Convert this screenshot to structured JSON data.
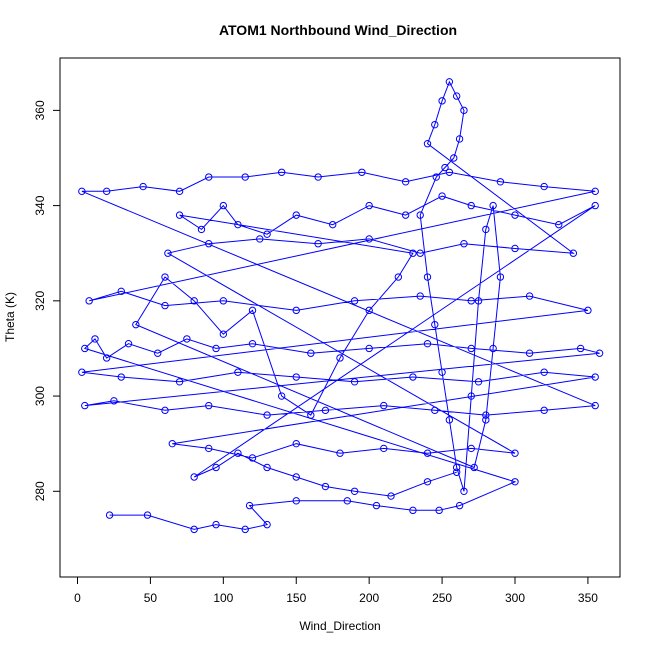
{
  "chart_data": {
    "type": "scatter",
    "title": "ATOM1 Northbound Wind_Direction",
    "xlabel": "Wind_Direction",
    "ylabel": "Theta (K)",
    "xlim": [
      -12,
      372
    ],
    "ylim": [
      262,
      371
    ],
    "xticks": [
      "0",
      "50",
      "100",
      "150",
      "200",
      "250",
      "300",
      "350"
    ],
    "yticks": [
      "280",
      "300",
      "320",
      "340",
      "360"
    ],
    "marker": "open-circle",
    "connected": true,
    "grid": false,
    "legend": "none",
    "color": "#0000ff",
    "series": [
      {
        "values": [
          [
            22,
            275
          ],
          [
            48,
            275
          ],
          [
            80,
            272
          ],
          [
            95,
            273
          ],
          [
            115,
            272
          ],
          [
            130,
            273
          ],
          [
            118,
            277
          ],
          [
            150,
            278
          ],
          [
            185,
            278
          ],
          [
            205,
            277
          ],
          [
            230,
            276
          ],
          [
            248,
            276
          ],
          [
            262,
            277
          ],
          [
            300,
            282
          ],
          [
            5,
            310
          ],
          [
            12,
            312
          ],
          [
            20,
            308
          ],
          [
            35,
            311
          ],
          [
            55,
            309
          ],
          [
            75,
            312
          ],
          [
            95,
            310
          ],
          [
            120,
            311
          ],
          [
            160,
            309
          ],
          [
            200,
            310
          ],
          [
            240,
            311
          ],
          [
            270,
            310
          ],
          [
            310,
            309
          ],
          [
            345,
            310
          ],
          [
            358,
            309
          ],
          [
            5,
            298
          ],
          [
            25,
            299
          ],
          [
            60,
            297
          ],
          [
            90,
            298
          ],
          [
            130,
            296
          ],
          [
            170,
            297
          ],
          [
            210,
            298
          ],
          [
            245,
            297
          ],
          [
            280,
            296
          ],
          [
            320,
            297
          ],
          [
            355,
            298
          ],
          [
            3,
            343
          ],
          [
            20,
            343
          ],
          [
            45,
            344
          ],
          [
            70,
            343
          ],
          [
            90,
            346
          ],
          [
            115,
            346
          ],
          [
            140,
            347
          ],
          [
            165,
            346
          ],
          [
            195,
            347
          ],
          [
            225,
            345
          ],
          [
            255,
            347
          ],
          [
            290,
            345
          ],
          [
            320,
            344
          ],
          [
            355,
            343
          ],
          [
            8,
            320
          ],
          [
            30,
            322
          ],
          [
            60,
            319
          ],
          [
            100,
            320
          ],
          [
            150,
            318
          ],
          [
            190,
            320
          ],
          [
            235,
            321
          ],
          [
            270,
            320
          ],
          [
            310,
            321
          ],
          [
            350,
            318
          ],
          [
            3,
            305
          ],
          [
            30,
            304
          ],
          [
            70,
            303
          ],
          [
            110,
            305
          ],
          [
            150,
            304
          ],
          [
            190,
            303
          ],
          [
            230,
            304
          ],
          [
            275,
            303
          ],
          [
            320,
            305
          ],
          [
            355,
            304
          ],
          [
            65,
            290
          ],
          [
            90,
            289
          ],
          [
            120,
            287
          ],
          [
            150,
            290
          ],
          [
            180,
            288
          ],
          [
            210,
            289
          ],
          [
            240,
            288
          ],
          [
            270,
            289
          ],
          [
            300,
            288
          ],
          [
            62,
            330
          ],
          [
            90,
            332
          ],
          [
            125,
            333
          ],
          [
            165,
            332
          ],
          [
            200,
            333
          ],
          [
            235,
            330
          ],
          [
            265,
            332
          ],
          [
            300,
            331
          ],
          [
            340,
            330
          ],
          [
            240,
            353
          ],
          [
            245,
            357
          ],
          [
            250,
            362
          ],
          [
            255,
            366
          ],
          [
            260,
            363
          ],
          [
            265,
            360
          ],
          [
            262,
            354
          ],
          [
            258,
            350
          ],
          [
            252,
            348
          ],
          [
            246,
            346
          ],
          [
            235,
            338
          ],
          [
            240,
            325
          ],
          [
            245,
            315
          ],
          [
            250,
            305
          ],
          [
            255,
            295
          ],
          [
            260,
            285
          ],
          [
            265,
            280
          ],
          [
            270,
            300
          ],
          [
            275,
            320
          ],
          [
            280,
            335
          ],
          [
            285,
            340
          ],
          [
            290,
            325
          ],
          [
            285,
            310
          ],
          [
            280,
            295
          ],
          [
            272,
            285
          ],
          [
            40,
            315
          ],
          [
            60,
            325
          ],
          [
            80,
            320
          ],
          [
            100,
            313
          ],
          [
            120,
            318
          ],
          [
            140,
            300
          ],
          [
            160,
            296
          ],
          [
            180,
            308
          ],
          [
            200,
            318
          ],
          [
            220,
            325
          ],
          [
            230,
            330
          ],
          [
            70,
            338
          ],
          [
            85,
            335
          ],
          [
            100,
            340
          ],
          [
            110,
            336
          ],
          [
            130,
            334
          ],
          [
            150,
            338
          ],
          [
            175,
            336
          ],
          [
            200,
            340
          ],
          [
            225,
            338
          ],
          [
            250,
            342
          ],
          [
            270,
            340
          ],
          [
            300,
            338
          ],
          [
            330,
            336
          ],
          [
            355,
            340
          ],
          [
            80,
            283
          ],
          [
            95,
            285
          ],
          [
            110,
            288
          ],
          [
            130,
            285
          ],
          [
            150,
            283
          ],
          [
            170,
            281
          ],
          [
            190,
            280
          ],
          [
            215,
            279
          ],
          [
            240,
            282
          ],
          [
            260,
            284
          ]
        ]
      }
    ]
  }
}
